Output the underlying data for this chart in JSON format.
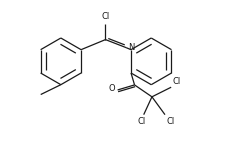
{
  "bg_color": "#ffffff",
  "line_color": "#1a1a1a",
  "line_width": 0.9,
  "font_size": 6.0,
  "figsize": [
    2.43,
    1.41
  ],
  "dpi": 100,
  "xlim": [
    0,
    10.5
  ],
  "ylim": [
    0,
    6.1
  ]
}
